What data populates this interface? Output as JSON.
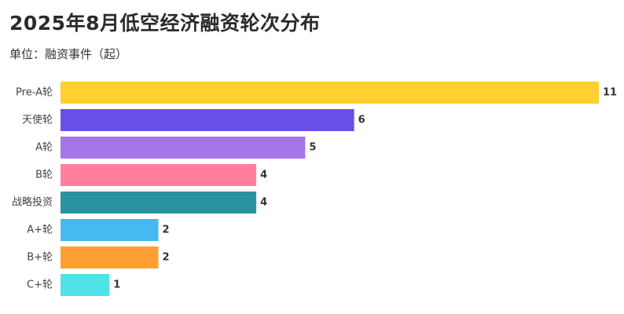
{
  "chart_data": {
    "type": "bar",
    "orientation": "horizontal",
    "title": "2025年8月低空经济融资轮次分布",
    "subtitle": "单位：融资事件（起）",
    "categories": [
      "Pre-A轮",
      "天使轮",
      "A轮",
      "B轮",
      "战略投资",
      "A+轮",
      "B+轮",
      "C+轮"
    ],
    "values": [
      11,
      6,
      5,
      4,
      4,
      2,
      2,
      1
    ],
    "colors": [
      "#FFD02F",
      "#6A4EE8",
      "#A575EA",
      "#FF7F9C",
      "#2B93A0",
      "#46B8F2",
      "#FF9F32",
      "#4FE3E8"
    ],
    "xlim": [
      0,
      11
    ],
    "grid": false,
    "legend": "none"
  }
}
